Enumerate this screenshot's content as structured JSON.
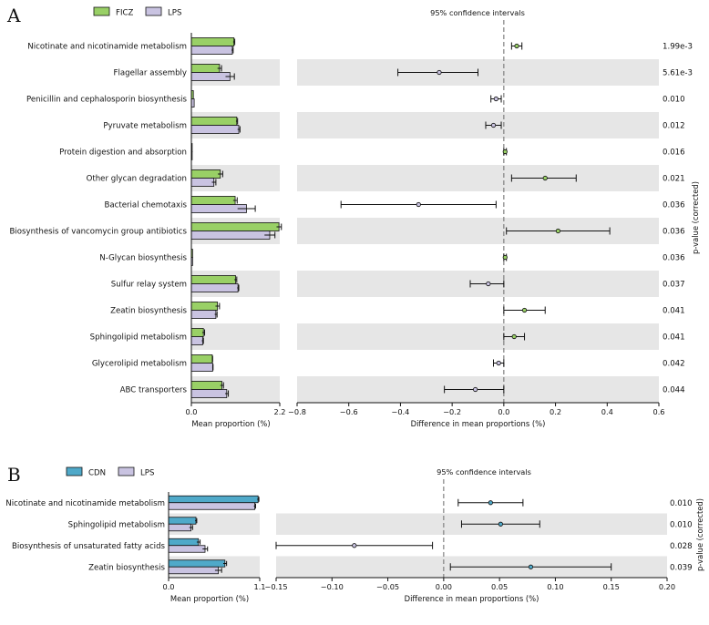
{
  "colors": {
    "ficz": "#99d066",
    "lps": "#c9c3e1",
    "cdn": "#4fa9c9",
    "stripe": "#e6e6e6",
    "edge": "#111111"
  },
  "chart_data": [
    {
      "type": "bar",
      "panel_label": "A",
      "legend": {
        "group1": "FICZ",
        "group2": "LPS"
      },
      "ci_title": "95% confidence intervals",
      "left_xlabel": "Mean proportion (%)",
      "right_xlabel": "Difference in mean proportions (%)",
      "pvalue_label": "p-value (corrected)",
      "left_xlim": [
        0,
        2.2
      ],
      "left_ticks": [
        "0.0",
        "2.2"
      ],
      "right_xlim": [
        -0.8,
        0.6
      ],
      "right_ticks": [
        "−0.8",
        "−0.6",
        "−0.4",
        "−0.2",
        "0.0",
        "0.2",
        "0.4",
        "0.6"
      ],
      "categories": [
        "Nicotinate and nicotinamide metabolism",
        "Flagellar assembly",
        "Penicillin and cephalosporin biosynthesis",
        "Pyruvate metabolism",
        "Protein digestion and absorption",
        "Other glycan degradation",
        "Bacterial chemotaxis",
        "Biosynthesis of vancomycin group antibiotics",
        "N-Glycan biosynthesis",
        "Sulfur relay system",
        "Zeatin biosynthesis",
        "Sphingolipid metabolism",
        "Glycerolipid metabolism",
        "ABC transporters"
      ],
      "series": [
        {
          "name": "FICZ",
          "values": [
            1.06,
            0.7,
            0.05,
            1.13,
            0.02,
            0.72,
            1.09,
            2.18,
            0.03,
            1.1,
            0.65,
            0.3,
            0.52,
            0.76
          ],
          "errors": [
            0.02,
            0.05,
            0.0,
            0.02,
            0.0,
            0.06,
            0.05,
            0.06,
            0.0,
            0.03,
            0.05,
            0.03,
            0.01,
            0.04
          ]
        },
        {
          "name": "LPS",
          "values": [
            1.02,
            0.96,
            0.07,
            1.18,
            0.02,
            0.56,
            1.37,
            1.95,
            0.03,
            1.16,
            0.61,
            0.28,
            0.53,
            0.88
          ],
          "errors": [
            0.02,
            0.11,
            0.0,
            0.03,
            0.0,
            0.05,
            0.22,
            0.13,
            0.0,
            0.02,
            0.03,
            0.02,
            0.01,
            0.04
          ]
        }
      ],
      "diffs": [
        0.05,
        -0.25,
        -0.03,
        -0.04,
        0.005,
        0.16,
        -0.33,
        0.21,
        0.005,
        -0.06,
        0.08,
        0.04,
        -0.02,
        -0.11
      ],
      "ci_low": [
        0.03,
        -0.41,
        -0.05,
        -0.07,
        0.0,
        0.03,
        -0.63,
        0.01,
        0.0,
        -0.13,
        0.0,
        0.0,
        -0.04,
        -0.23
      ],
      "ci_high": [
        0.07,
        -0.1,
        -0.01,
        -0.01,
        0.01,
        0.28,
        -0.03,
        0.41,
        0.01,
        0.0,
        0.16,
        0.08,
        0.0,
        0.0
      ],
      "pvalues": [
        "1.99e-3",
        "5.61e-3",
        "0.010",
        "0.012",
        "0.016",
        "0.021",
        "0.036",
        "0.036",
        "0.036",
        "0.037",
        "0.041",
        "0.041",
        "0.042",
        "0.044"
      ]
    },
    {
      "type": "bar",
      "panel_label": "B",
      "legend": {
        "group1": "CDN",
        "group2": "LPS"
      },
      "ci_title": "95% confidence intervals",
      "left_xlabel": "Mean proportion (%)",
      "right_xlabel": "Difference in mean proportions (%)",
      "pvalue_label": "p-value (corrected)",
      "left_xlim": [
        0,
        1.1
      ],
      "left_ticks": [
        "0.0",
        "1.1"
      ],
      "right_xlim": [
        -0.15,
        0.2
      ],
      "right_ticks": [
        "−0.15",
        "−0.10",
        "−0.05",
        "0.00",
        "0.05",
        "0.10",
        "0.15",
        "0.20"
      ],
      "categories": [
        "Nicotinate and nicotinamide metabolism",
        "Sphingolipid metabolism",
        "Biosynthesis of unsaturated fatty acids",
        "Zeatin biosynthesis"
      ],
      "series": [
        {
          "name": "CDN",
          "values": [
            1.08,
            0.33,
            0.36,
            0.68
          ],
          "errors": [
            0.01,
            0.01,
            0.02,
            0.02
          ]
        },
        {
          "name": "LPS",
          "values": [
            1.04,
            0.27,
            0.44,
            0.6
          ],
          "errors": [
            0.01,
            0.02,
            0.03,
            0.04
          ]
        }
      ],
      "diffs": [
        0.042,
        0.051,
        -0.08,
        0.078
      ],
      "ci_low": [
        0.013,
        0.016,
        -0.15,
        0.006
      ],
      "ci_high": [
        0.071,
        0.086,
        -0.01,
        0.15
      ],
      "pvalues": [
        "0.010",
        "0.010",
        "0.028",
        "0.039"
      ]
    }
  ]
}
